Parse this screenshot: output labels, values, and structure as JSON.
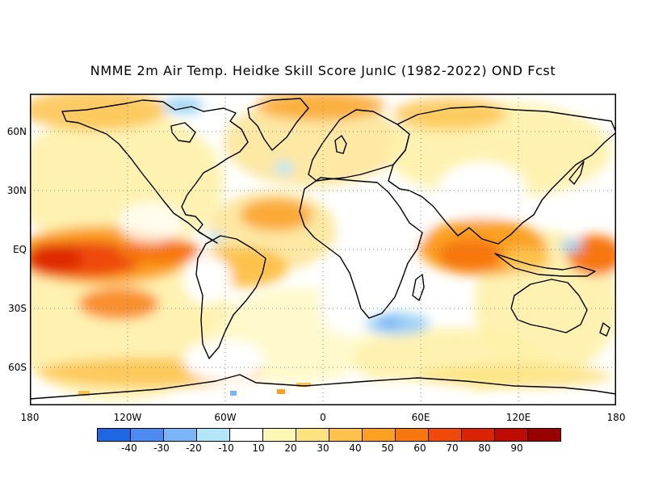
{
  "title": "NMME 2m Air Temp. Heidke Skill Score JunIC (1982-2022) OND Fcst",
  "map": {
    "lat_labels": [
      "60N",
      "30N",
      "EQ",
      "30S",
      "60S"
    ],
    "lon_labels": [
      "180",
      "120W",
      "60W",
      "0",
      "60E",
      "120E",
      "180"
    ],
    "grid": "dotted, every 30 degrees"
  },
  "colorbar": {
    "labels": [
      "-40",
      "-30",
      "-20",
      "-10",
      "10",
      "20",
      "30",
      "40",
      "50",
      "60",
      "70",
      "80",
      "90"
    ],
    "colors": [
      "#1f66e5",
      "#4c8cf0",
      "#7ab6f7",
      "#b4e6fa",
      "#ffffff",
      "#fff8b4",
      "#fde380",
      "#fdc24b",
      "#fba023",
      "#f7770f",
      "#ef4a09",
      "#dc2204",
      "#bf0c02",
      "#990000"
    ]
  }
}
